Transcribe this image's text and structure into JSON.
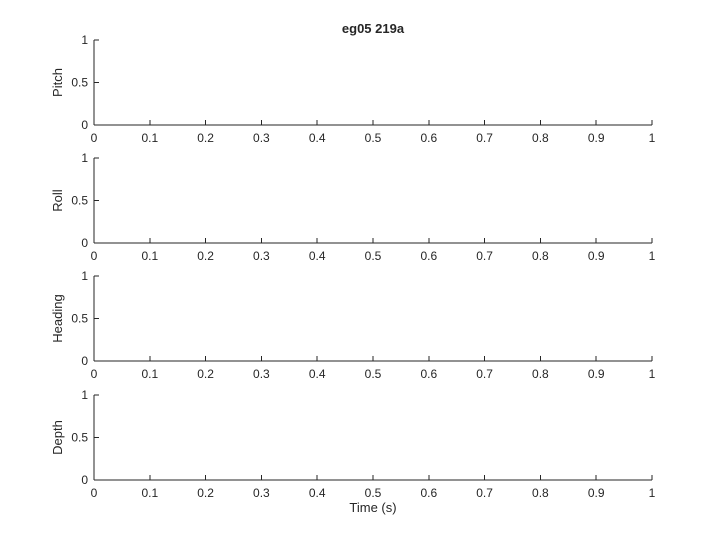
{
  "figure": {
    "title": "eg05  219a",
    "xlabel": "Time (s)"
  },
  "chart_data": [
    {
      "type": "line",
      "ylabel": "Pitch",
      "xlim": [
        0,
        1
      ],
      "ylim": [
        0,
        1
      ],
      "xticks": [
        "0",
        "0.1",
        "0.2",
        "0.3",
        "0.4",
        "0.5",
        "0.6",
        "0.7",
        "0.8",
        "0.9",
        "1"
      ],
      "yticks": [
        "0",
        "0.5",
        "1"
      ],
      "grid": false,
      "series": []
    },
    {
      "type": "line",
      "ylabel": "Roll",
      "xlim": [
        0,
        1
      ],
      "ylim": [
        0,
        1
      ],
      "xticks": [
        "0",
        "0.1",
        "0.2",
        "0.3",
        "0.4",
        "0.5",
        "0.6",
        "0.7",
        "0.8",
        "0.9",
        "1"
      ],
      "yticks": [
        "0",
        "0.5",
        "1"
      ],
      "grid": false,
      "series": []
    },
    {
      "type": "line",
      "ylabel": "Heading",
      "xlim": [
        0,
        1
      ],
      "ylim": [
        0,
        1
      ],
      "xticks": [
        "0",
        "0.1",
        "0.2",
        "0.3",
        "0.4",
        "0.5",
        "0.6",
        "0.7",
        "0.8",
        "0.9",
        "1"
      ],
      "yticks": [
        "0",
        "0.5",
        "1"
      ],
      "grid": false,
      "series": []
    },
    {
      "type": "line",
      "ylabel": "Depth",
      "xlim": [
        0,
        1
      ],
      "ylim": [
        0,
        1
      ],
      "xticks": [
        "0",
        "0.1",
        "0.2",
        "0.3",
        "0.4",
        "0.5",
        "0.6",
        "0.7",
        "0.8",
        "0.9",
        "1"
      ],
      "yticks": [
        "0",
        "0.5",
        "1"
      ],
      "grid": false,
      "series": []
    }
  ]
}
